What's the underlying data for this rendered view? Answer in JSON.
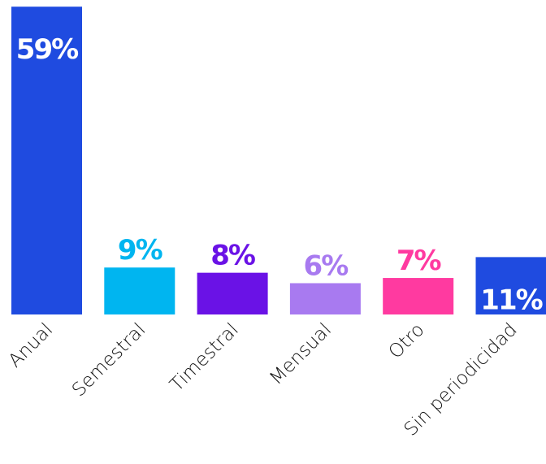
{
  "chart_data": {
    "type": "bar",
    "categories": [
      "Anual",
      "Semestral",
      "Timestral",
      "Mensual",
      "Otro",
      "Sin periodicidad"
    ],
    "values": [
      59,
      9,
      8,
      6,
      7,
      11
    ],
    "value_labels": [
      "59%",
      "9%",
      "8%",
      "6%",
      "7%",
      "11%"
    ],
    "colors": [
      "#1f4be0",
      "#00b5f0",
      "#6a12e6",
      "#a87af0",
      "#ff3aa0",
      "#1f4be0"
    ],
    "labels_inside": [
      true,
      false,
      false,
      false,
      false,
      true
    ]
  }
}
